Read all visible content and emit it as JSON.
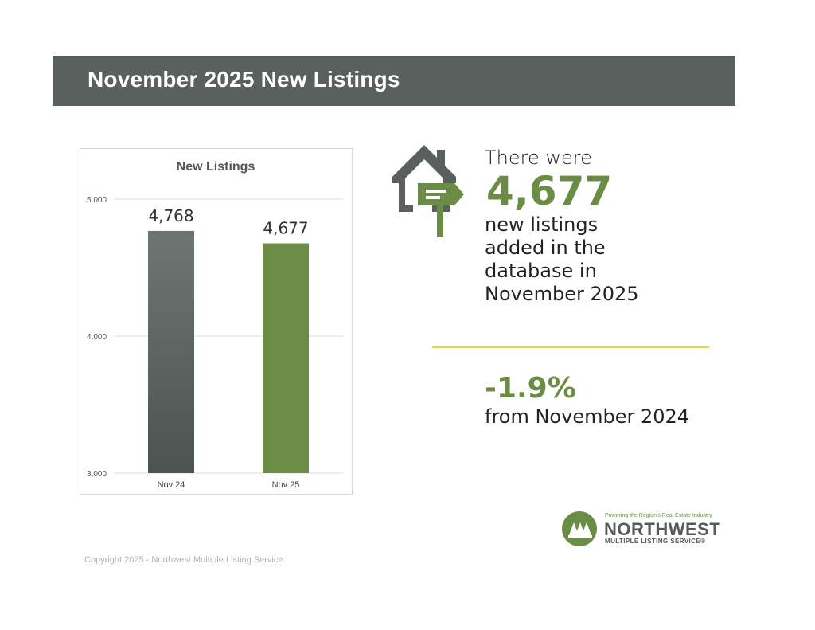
{
  "header": {
    "title": "November 2025 New Listings"
  },
  "chart_data": {
    "type": "bar",
    "title": "New Listings",
    "categories": [
      "Nov 24",
      "Nov 25"
    ],
    "values": [
      4768,
      4677
    ],
    "value_labels": [
      "4,768",
      "4,677"
    ],
    "bar_colors": [
      "#5a605d",
      "#6a8c44"
    ],
    "ylim": [
      3000,
      5000
    ],
    "yticks": [
      3000,
      4000,
      5000
    ],
    "ytick_labels": [
      "3,000",
      "4,000",
      "5,000"
    ],
    "grid": true,
    "xlabel": "",
    "ylabel": ""
  },
  "summary": {
    "pre": "There were",
    "value": "4,677",
    "description": "new listings added in the database in November 2025"
  },
  "change": {
    "value": "-1.9%",
    "label": "from November 2024"
  },
  "logo": {
    "tagline": "Powering the Region's Real Estate Industry",
    "name": "NORTHWEST",
    "sub": "MULTIPLE LISTING SERVICE®"
  },
  "footer": {
    "copyright": "Copyright 2025 - Northwest Multiple Listing Service"
  },
  "colors": {
    "accent_green": "#6a8c44",
    "header_gray": "#5a605d",
    "divider_yellow": "#f0d24a"
  },
  "icons": {
    "house": "house-signpost-icon"
  }
}
